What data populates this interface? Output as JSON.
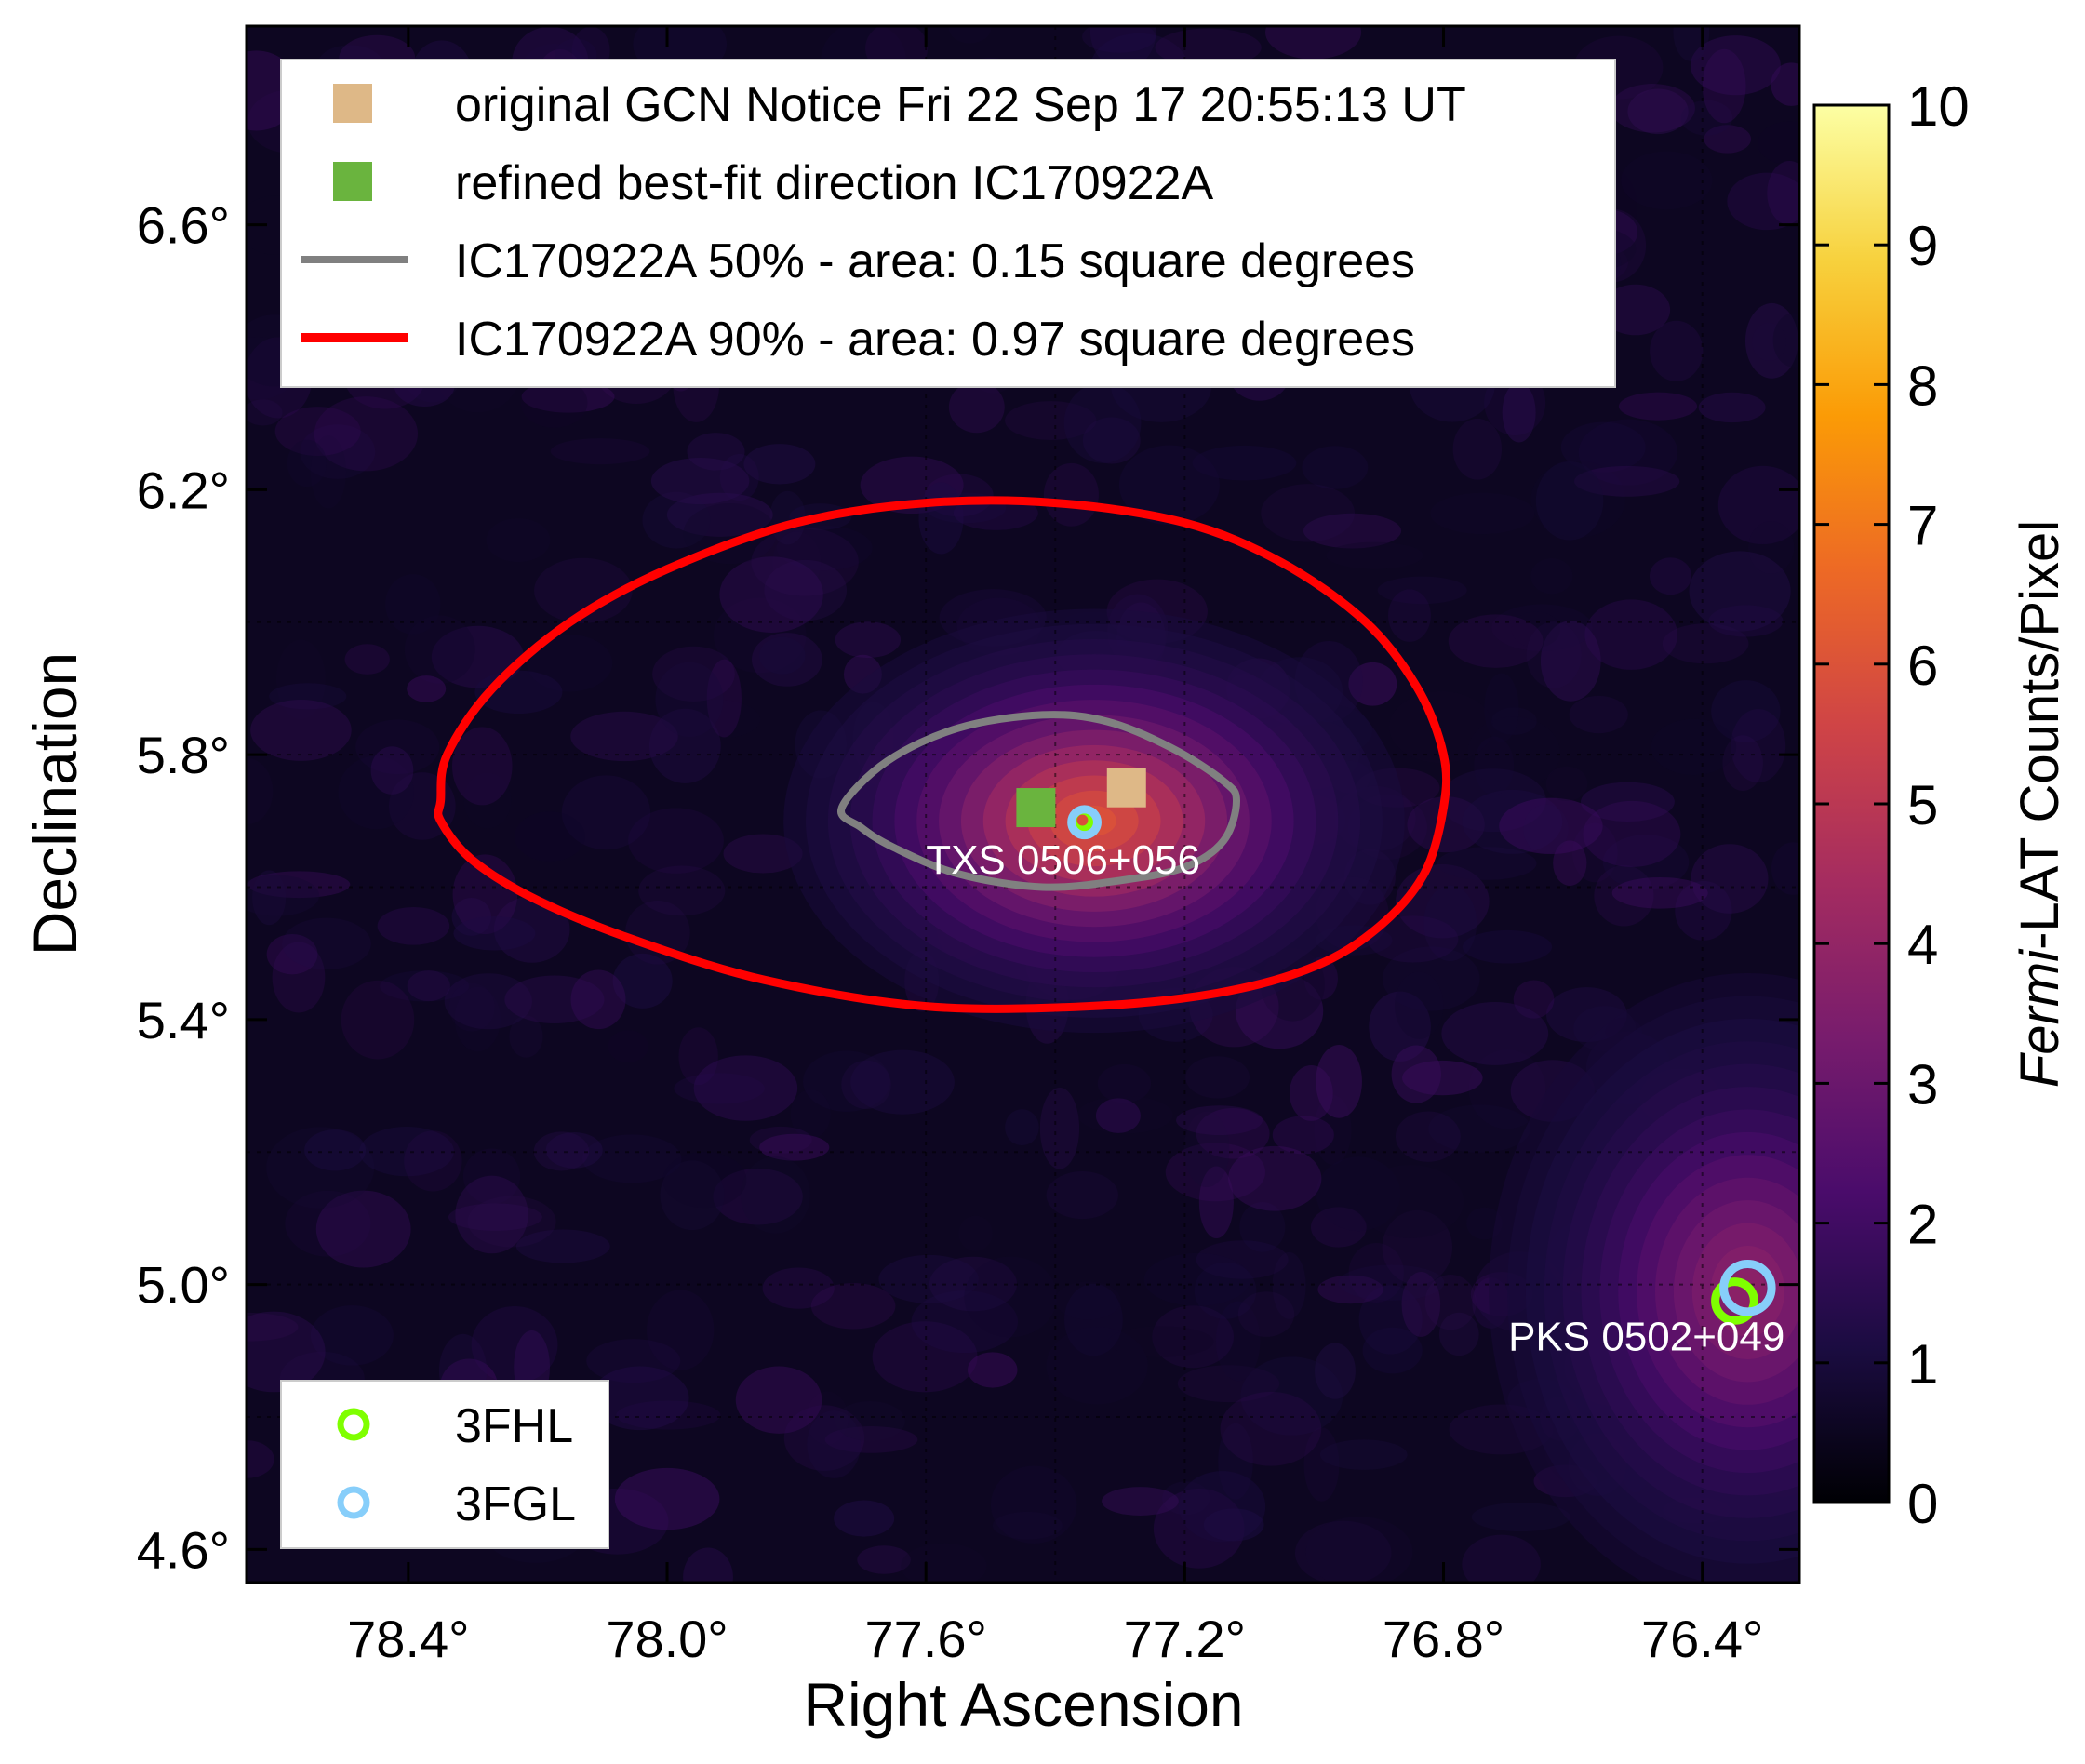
{
  "chart_data": {
    "type": "heatmap",
    "title": "",
    "xlabel": "Right Ascension",
    "ylabel": "Declination",
    "x_reversed": true,
    "xlim": [
      78.65,
      76.25
    ],
    "ylim": [
      4.55,
      6.9
    ],
    "x_ticks": [
      {
        "value": 78.4,
        "label": "78.4°"
      },
      {
        "value": 78.0,
        "label": "78.0°"
      },
      {
        "value": 77.6,
        "label": "77.6°"
      },
      {
        "value": 77.2,
        "label": "77.2°"
      },
      {
        "value": 76.8,
        "label": "76.8°"
      },
      {
        "value": 76.4,
        "label": "76.4°"
      }
    ],
    "y_ticks": [
      {
        "value": 6.6,
        "label": "6.6°"
      },
      {
        "value": 6.2,
        "label": "6.2°"
      },
      {
        "value": 5.8,
        "label": "5.8°"
      },
      {
        "value": 5.4,
        "label": "5.4°"
      },
      {
        "value": 5.0,
        "label": "5.0°"
      },
      {
        "value": 4.6,
        "label": "4.6°"
      }
    ],
    "colorbar": {
      "label_italic": "Fermi",
      "label_rest": "-LAT Counts/Pixel",
      "min": 0,
      "max": 10,
      "ticks": [
        "0",
        "1",
        "2",
        "3",
        "4",
        "5",
        "6",
        "7",
        "8",
        "9",
        "10"
      ],
      "colormap": [
        "#000004",
        "#1b0c41",
        "#4a0c6b",
        "#781c6d",
        "#a52c60",
        "#cf4446",
        "#ed6925",
        "#fb9b06",
        "#f7d13d",
        "#fcffa4"
      ]
    },
    "emission_blobs": [
      {
        "name": "TXS 0506+056 region",
        "ra": 77.34,
        "dec": 5.7,
        "ra_sigma": 0.3,
        "dec_sigma": 0.2,
        "peak_counts": 5.5
      },
      {
        "name": "PKS 0502+049 region",
        "ra": 76.33,
        "dec": 4.99,
        "ra_sigma": 0.25,
        "dec_sigma": 0.3,
        "peak_counts": 3.2
      }
    ],
    "markers": [
      {
        "name": "original GCN Notice",
        "ra": 77.29,
        "dec": 5.75,
        "color": "#deb887",
        "shape": "square"
      },
      {
        "name": "refined best-fit direction",
        "ra": 77.43,
        "dec": 5.72,
        "color": "#6ab43e",
        "shape": "square"
      },
      {
        "name": "TXS 0506+056 3FHL",
        "ra": 77.358,
        "dec": 5.701,
        "color": "#7fff00",
        "shape": "circle",
        "r": 0.015
      },
      {
        "name": "TXS 0506+056 3FGL",
        "ra": 77.355,
        "dec": 5.698,
        "color": "#87cefa",
        "shape": "circle",
        "r": 0.02
      },
      {
        "name": "PKS 0502+049 3FHL",
        "ra": 76.35,
        "dec": 4.975,
        "color": "#7fff00",
        "shape": "circle",
        "r": 0.03
      },
      {
        "name": "PKS 0502+049 3FGL",
        "ra": 76.33,
        "dec": 4.995,
        "color": "#87cefa",
        "shape": "circle",
        "r": 0.037
      }
    ],
    "source_labels": [
      {
        "text": "TXS 0506+056",
        "ra": 77.6,
        "dec": 5.64
      },
      {
        "text": "PKS 0502+049",
        "ra": 76.7,
        "dec": 4.92
      }
    ],
    "contours": [
      {
        "name": "IC170922A 50%",
        "color": "#808080",
        "points": [
          [
            77.73,
            5.72
          ],
          [
            77.66,
            5.79
          ],
          [
            77.55,
            5.84
          ],
          [
            77.42,
            5.86
          ],
          [
            77.32,
            5.85
          ],
          [
            77.22,
            5.81
          ],
          [
            77.14,
            5.76
          ],
          [
            77.12,
            5.73
          ],
          [
            77.14,
            5.67
          ],
          [
            77.2,
            5.63
          ],
          [
            77.3,
            5.61
          ],
          [
            77.42,
            5.6
          ],
          [
            77.55,
            5.62
          ],
          [
            77.65,
            5.66
          ],
          [
            77.7,
            5.69
          ]
        ]
      },
      {
        "name": "IC170922A 90%",
        "color": "#ff0000",
        "points": [
          [
            78.35,
            5.73
          ],
          [
            78.34,
            5.8
          ],
          [
            78.27,
            5.9
          ],
          [
            78.15,
            6.0
          ],
          [
            78.0,
            6.08
          ],
          [
            77.8,
            6.15
          ],
          [
            77.6,
            6.18
          ],
          [
            77.4,
            6.18
          ],
          [
            77.2,
            6.15
          ],
          [
            77.05,
            6.09
          ],
          [
            76.92,
            6.0
          ],
          [
            76.84,
            5.9
          ],
          [
            76.8,
            5.8
          ],
          [
            76.8,
            5.72
          ],
          [
            76.83,
            5.62
          ],
          [
            76.9,
            5.54
          ],
          [
            77.0,
            5.48
          ],
          [
            77.15,
            5.44
          ],
          [
            77.35,
            5.42
          ],
          [
            77.6,
            5.42
          ],
          [
            77.85,
            5.46
          ],
          [
            78.05,
            5.52
          ],
          [
            78.2,
            5.58
          ],
          [
            78.3,
            5.64
          ],
          [
            78.35,
            5.7
          ]
        ]
      }
    ],
    "dotted_grid": {
      "ra": [
        77.6,
        77.4,
        77.2,
        76.4
      ],
      "dec": [
        6.0,
        5.8,
        5.6,
        5.2,
        5.0,
        4.8
      ]
    },
    "legend_main": {
      "position": "top",
      "entries": [
        {
          "label": "original GCN Notice Fri 22 Sep 17 20:55:13 UT",
          "symbol": "square",
          "color": "#deb887"
        },
        {
          "label": "refined best-fit direction IC170922A",
          "symbol": "square",
          "color": "#6ab43e"
        },
        {
          "label": "IC170922A 50% - area: 0.15 square degrees",
          "symbol": "line",
          "color": "#808080"
        },
        {
          "label": "IC170922A 90% - area: 0.97 square degrees",
          "symbol": "line",
          "color": "#ff0000"
        }
      ]
    },
    "legend_catalog": {
      "position": "bottom-left",
      "entries": [
        {
          "label": "3FHL",
          "symbol": "circle",
          "color": "#7fff00"
        },
        {
          "label": "3FGL",
          "symbol": "circle",
          "color": "#87cefa"
        }
      ]
    }
  }
}
